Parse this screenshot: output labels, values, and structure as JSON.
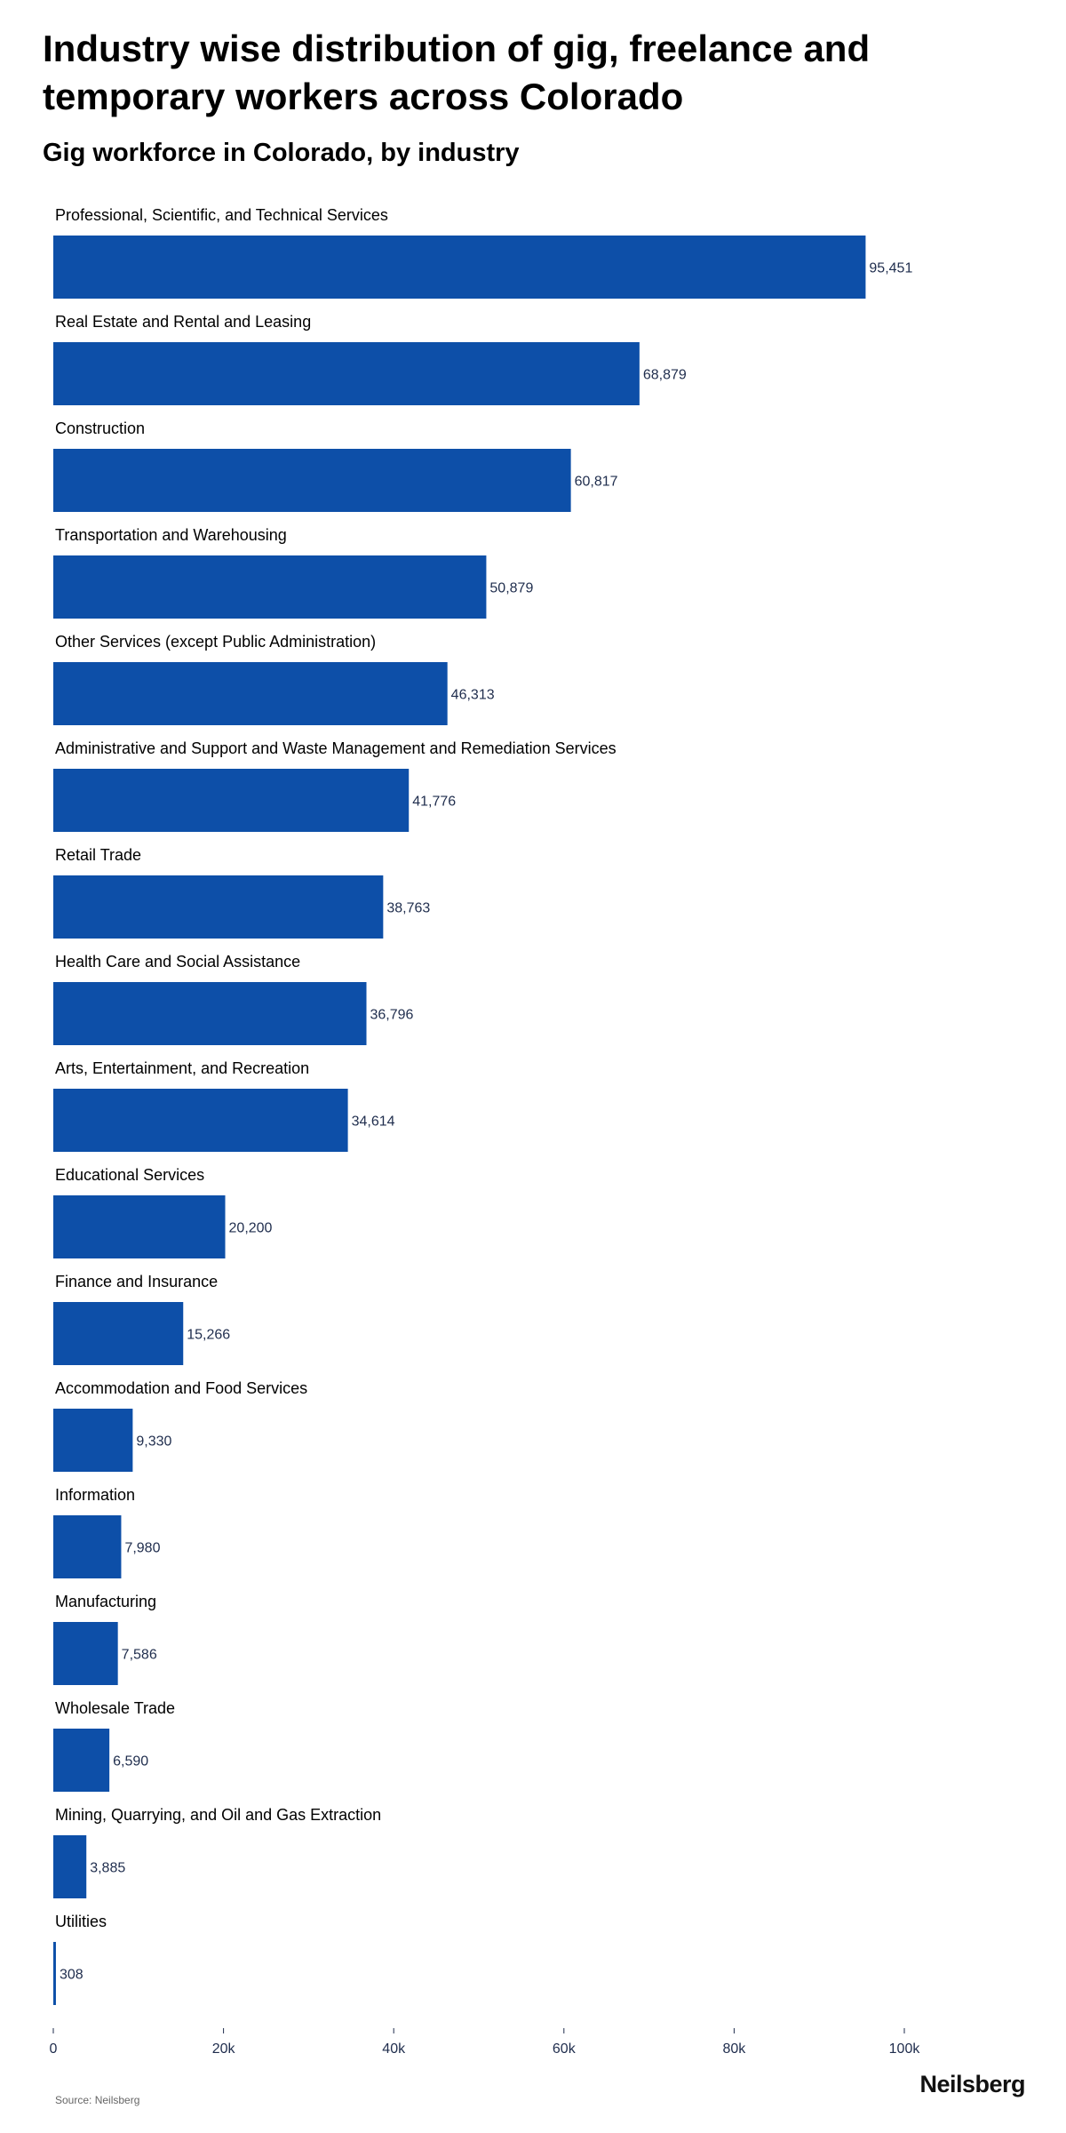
{
  "header": {
    "title": "Industry wise distribution of gig, freelance and temporary workers across Colorado",
    "subtitle": "Gig workforce in Colorado, by industry"
  },
  "footer": {
    "source": "Source: Neilsberg",
    "brand": "Neilsberg"
  },
  "colors": {
    "bar": "#0d4fa8",
    "tick": "#1f2d4d"
  },
  "chart_data": {
    "type": "bar",
    "orientation": "horizontal",
    "title": "Gig workforce in Colorado, by industry",
    "xlabel": "",
    "ylabel": "",
    "xlim": [
      0,
      115000
    ],
    "ticks": [
      {
        "value": 0,
        "label": "0"
      },
      {
        "value": 20000,
        "label": "20k"
      },
      {
        "value": 40000,
        "label": "40k"
      },
      {
        "value": 60000,
        "label": "60k"
      },
      {
        "value": 80000,
        "label": "80k"
      },
      {
        "value": 100000,
        "label": "100k"
      }
    ],
    "grid": false,
    "legend": "none",
    "categories": [
      "Professional, Scientific, and Technical Services",
      "Real Estate and Rental and Leasing",
      "Construction",
      "Transportation and Warehousing",
      "Other Services (except Public Administration)",
      "Administrative and Support and Waste Management and Remediation Services",
      "Retail Trade",
      "Health Care and Social Assistance",
      "Arts, Entertainment, and Recreation",
      "Educational Services",
      "Finance and Insurance",
      "Accommodation and Food Services",
      "Information",
      "Manufacturing",
      "Wholesale Trade",
      "Mining, Quarrying, and Oil and Gas Extraction",
      "Utilities"
    ],
    "values": [
      95451,
      68879,
      60817,
      50879,
      46313,
      41776,
      38763,
      36796,
      34614,
      20200,
      15266,
      9330,
      7980,
      7586,
      6590,
      3885,
      308
    ],
    "value_labels": [
      "95,451",
      "68,879",
      "60,817",
      "50,879",
      "46,313",
      "41,776",
      "38,763",
      "36,796",
      "34,614",
      "20,200",
      "15,266",
      "9,330",
      "7,980",
      "7,586",
      "6,590",
      "3,885",
      "308"
    ]
  }
}
